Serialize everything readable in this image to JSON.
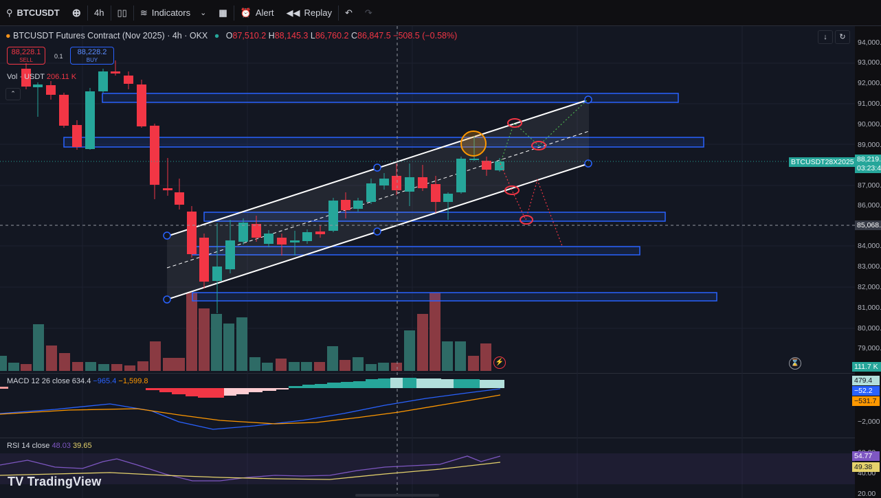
{
  "toolbar": {
    "symbol": "BTCUSDT",
    "interval": "4h",
    "indicators": "Indicators",
    "alert": "Alert",
    "replay": "Replay"
  },
  "legend": {
    "title": "BTCUSDT Futures Contract (Nov 2025) · 4h · OKX",
    "o_label": "O",
    "o": "87,510.2",
    "h_label": "H",
    "h": "88,145.3",
    "l_label": "L",
    "l": "86,760.2",
    "c_label": "C",
    "c": "86,847.5",
    "change": "−508.5 (−0.58%)"
  },
  "trade": {
    "sell_price": "88,228.1",
    "sell_label": "SELL",
    "spread": "0.1",
    "buy_price": "88,228.2",
    "buy_label": "BUY"
  },
  "volume": {
    "label": "Vol · USDT",
    "value": "206.11 K"
  },
  "macd": {
    "label": "MACD 12 26 close",
    "v1": "634.4",
    "v2": "−965.4",
    "v3": "−1,599.8"
  },
  "rsi": {
    "label": "RSI 14 close",
    "v1": "48.03",
    "v2": "39.65"
  },
  "price_axis": {
    "ticks": [
      "94,000.0",
      "93,000.0",
      "92,000.0",
      "91,000.0",
      "90,000.0",
      "89,000.0",
      "87,000.0",
      "86,000.0",
      "84,000.0",
      "83,000.0",
      "82,000.0",
      "81,000.0",
      "80,000.0",
      "79,000.0"
    ],
    "current_symbol": "BTCUSDT28X2025",
    "current_price": "88,219.",
    "countdown": "03:23:4",
    "crosshair_price": "85,068.",
    "volume_label": "111.7 K",
    "macd_labels": [
      "479.4",
      "−52.2",
      "−531.7",
      "−2,000"
    ],
    "rsi_labels": [
      "60.00",
      "54.77",
      "49.38",
      "40.00",
      "20.00"
    ]
  },
  "brand": "TradingView",
  "colors": {
    "up": "#26a69a",
    "down": "#f23645",
    "zone": "#2962ff",
    "channel": "#ffffff"
  },
  "icons": [
    "search-icon",
    "plus-circle-icon",
    "candles-icon",
    "indicators-icon",
    "chevron-down-icon",
    "layouts-icon",
    "alarm-icon",
    "replay-icon",
    "undo-icon",
    "redo-icon",
    "download-icon",
    "fullscreen-icon",
    "lightning-icon",
    "timer-icon"
  ]
}
